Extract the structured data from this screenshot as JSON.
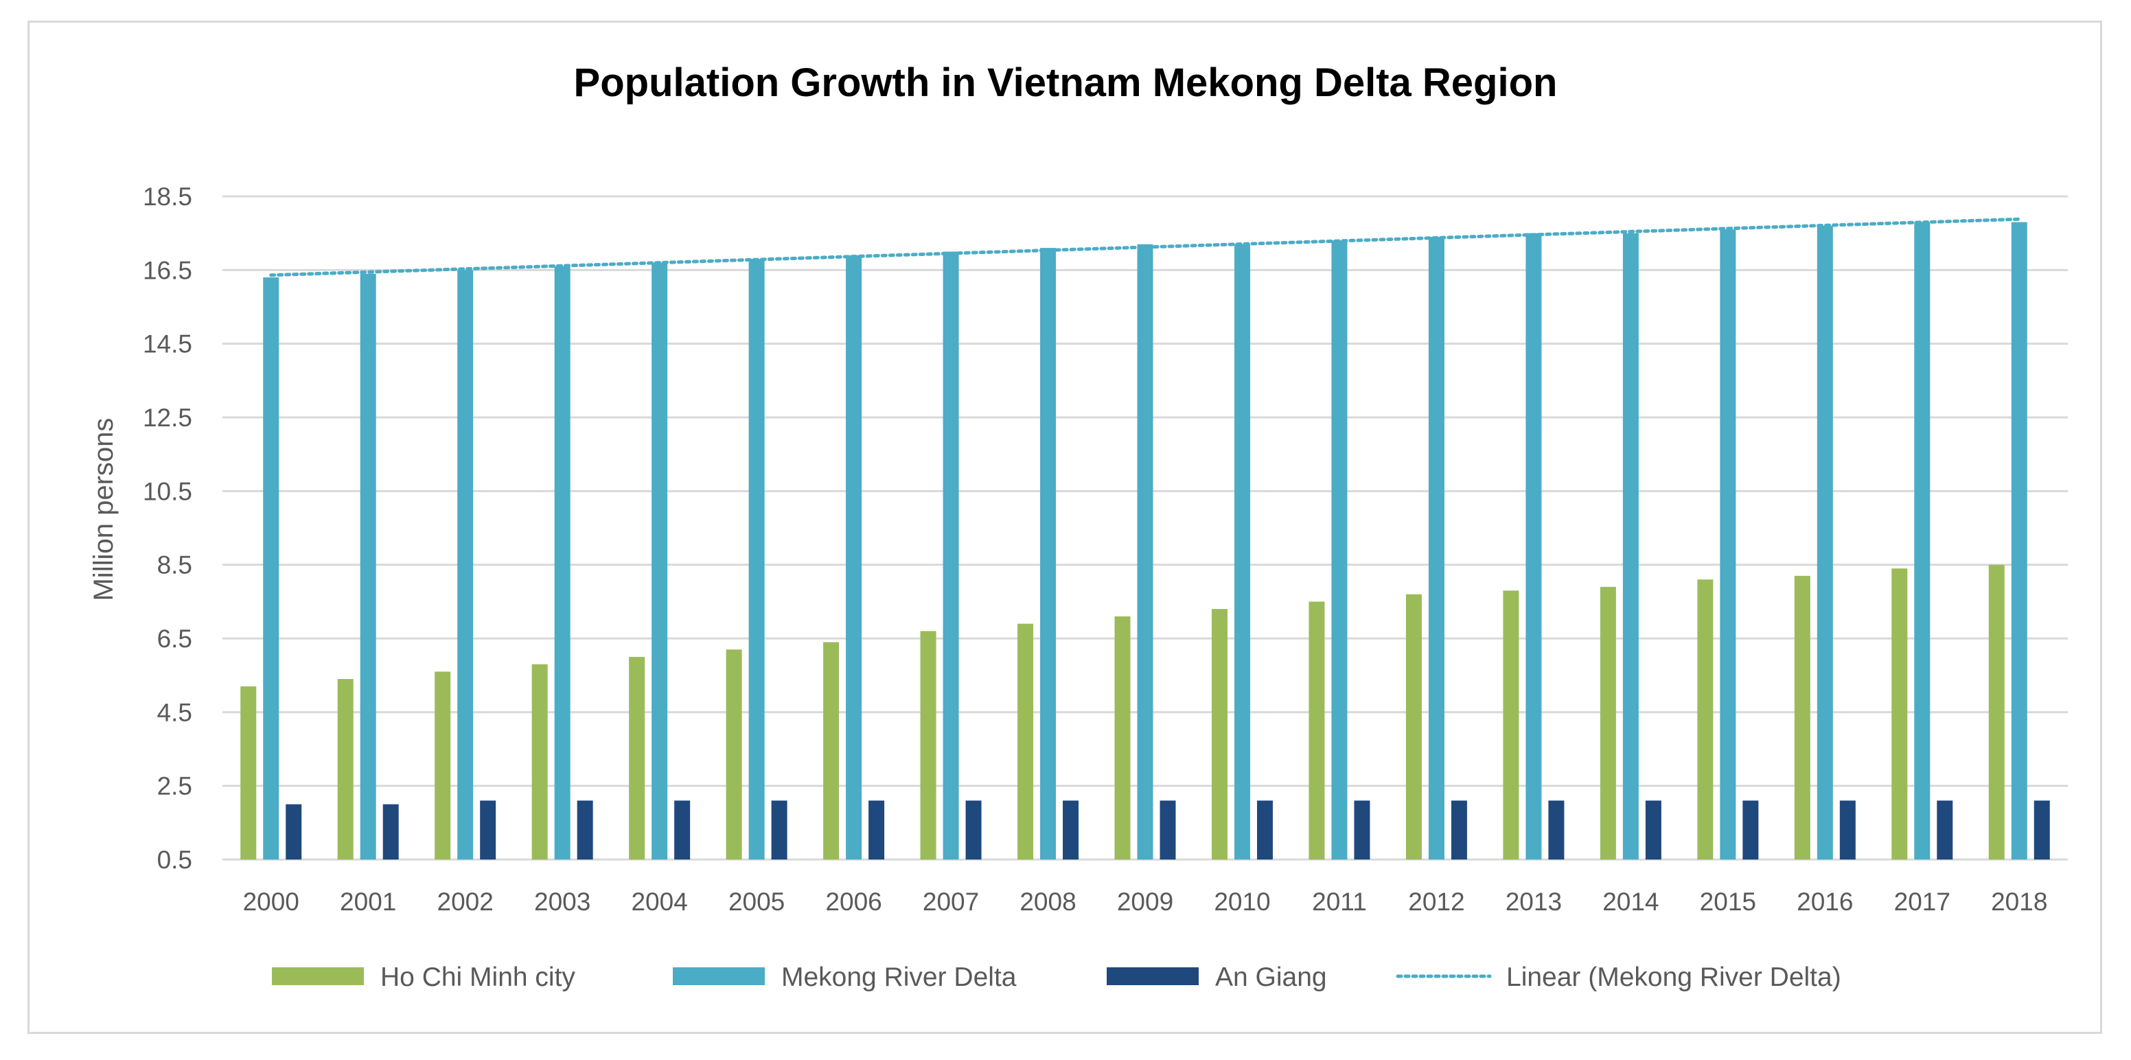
{
  "chart_data": {
    "type": "bar",
    "title": "Population Growth in Vietnam Mekong Delta Region",
    "xlabel": "",
    "ylabel": "Million persons",
    "ylim": [
      0.5,
      18.5
    ],
    "yticks": [
      "18.5",
      "16.5",
      "14.5",
      "12.5",
      "10.5",
      "8.5",
      "6.5",
      "4.5",
      "2.5",
      "0.5"
    ],
    "categories": [
      "2000",
      "2001",
      "2002",
      "2003",
      "2004",
      "2005",
      "2006",
      "2007",
      "2008",
      "2009",
      "2010",
      "2011",
      "2012",
      "2013",
      "2014",
      "2015",
      "2016",
      "2017",
      "2018"
    ],
    "series": [
      {
        "name": "Ho Chi Minh city",
        "color": "#9bbb59",
        "values": [
          5.2,
          5.4,
          5.6,
          5.8,
          6.0,
          6.2,
          6.4,
          6.7,
          6.9,
          7.1,
          7.3,
          7.5,
          7.7,
          7.8,
          7.9,
          8.1,
          8.2,
          8.4,
          8.5
        ]
      },
      {
        "name": "Mekong River Delta",
        "color": "#4bacc6",
        "values": [
          16.3,
          16.4,
          16.5,
          16.6,
          16.7,
          16.8,
          16.9,
          17.0,
          17.1,
          17.2,
          17.2,
          17.3,
          17.4,
          17.5,
          17.5,
          17.6,
          17.7,
          17.8,
          17.8
        ]
      },
      {
        "name": "An Giang",
        "color": "#1f497d",
        "values": [
          2.0,
          2.0,
          2.1,
          2.1,
          2.1,
          2.1,
          2.1,
          2.1,
          2.1,
          2.1,
          2.1,
          2.1,
          2.1,
          2.1,
          2.1,
          2.1,
          2.1,
          2.1,
          2.1
        ]
      }
    ],
    "trendline": {
      "name": "Linear (Mekong River Delta)",
      "color": "#4bacc6",
      "of_series": "Mekong River Delta",
      "style": "dotted"
    },
    "legend": "bottom",
    "grid": true
  }
}
